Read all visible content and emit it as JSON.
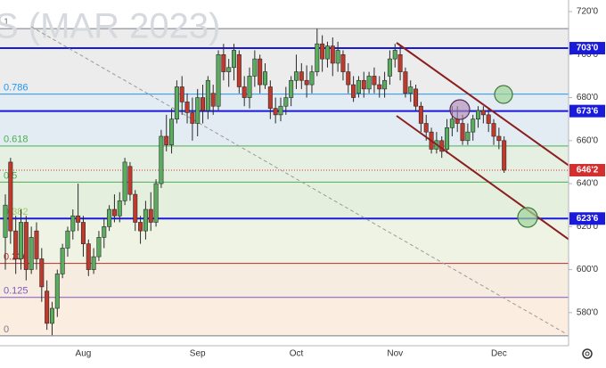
{
  "chart_data": {
    "type": "candlestick",
    "watermark": "S (MAR 2023)",
    "categories": [
      null,
      null,
      null,
      null,
      null,
      null,
      null,
      null,
      null,
      null,
      null,
      null,
      null,
      null,
      null,
      "Aug",
      null,
      null,
      null,
      null,
      null,
      null,
      null,
      null,
      null,
      null,
      null,
      null,
      null,
      null,
      null,
      null,
      null,
      null,
      null,
      null,
      null,
      "Sep",
      null,
      null,
      null,
      null,
      null,
      null,
      null,
      null,
      null,
      null,
      null,
      null,
      null,
      null,
      null,
      null,
      null,
      null,
      "Oct",
      null,
      null,
      null,
      null,
      null,
      null,
      null,
      null,
      null,
      null,
      null,
      null,
      null,
      null,
      null,
      null,
      null,
      null,
      "Nov",
      null,
      null,
      null,
      null,
      null,
      null,
      null,
      null,
      null,
      null,
      null,
      null,
      null,
      null,
      null,
      null,
      null,
      null,
      null,
      "Dec",
      null
    ],
    "series": [
      {
        "up_color": "#5aad5e",
        "down_color": "#c0392b",
        "open": [
          615,
          650,
          618,
          605,
          622,
          600,
          618,
          605,
          590,
          575,
          582,
          598,
          610,
          618,
          625,
          622,
          612,
          600,
          606,
          615,
          620,
          628,
          625,
          632,
          648,
          635,
          622,
          618,
          628,
          622,
          640,
          662,
          658,
          670,
          685,
          678,
          673,
          668,
          680,
          674,
          682,
          676,
          700,
          692,
          694,
          700,
          685,
          680,
          690,
          698,
          686,
          685,
          675,
          672,
          676,
          680,
          688,
          692,
          688,
          686,
          692,
          705,
          698,
          704,
          696,
          700,
          692,
          686,
          682,
          688,
          684,
          690,
          686,
          684,
          690,
          698,
          700,
          692,
          682,
          684,
          676,
          668,
          664,
          656,
          660,
          656,
          666,
          670,
          668,
          660,
          664,
          670,
          674,
          672,
          668,
          662,
          660
        ],
        "high": [
          635,
          652,
          625,
          628,
          625,
          620,
          622,
          610,
          595,
          585,
          600,
          612,
          620,
          628,
          640,
          625,
          614,
          610,
          618,
          624,
          630,
          635,
          636,
          652,
          650,
          637,
          625,
          632,
          636,
          642,
          665,
          672,
          675,
          688,
          690,
          682,
          680,
          684,
          686,
          690,
          686,
          702,
          705,
          698,
          705,
          702,
          690,
          694,
          702,
          700,
          696,
          688,
          680,
          680,
          685,
          690,
          700,
          696,
          695,
          695,
          712,
          709,
          706,
          708,
          706,
          702,
          696,
          690,
          690,
          692,
          692,
          694,
          690,
          692,
          702,
          705,
          704,
          694,
          688,
          686,
          678,
          672,
          666,
          664,
          662,
          670,
          676,
          676,
          672,
          668,
          672,
          676,
          676,
          675,
          670,
          666,
          662
        ],
        "low": [
          600,
          612,
          598,
          600,
          595,
          598,
          600,
          585,
          572,
          569.5,
          578,
          596,
          606,
          614,
          618,
          606,
          597,
          598,
          604,
          610,
          618,
          622,
          622,
          630,
          632,
          618,
          612,
          614,
          618,
          620,
          638,
          655,
          654,
          668,
          672,
          668,
          660,
          662,
          668,
          670,
          672,
          674,
          688,
          685,
          688,
          682,
          676,
          675,
          685,
          682,
          684,
          670,
          668,
          669,
          672,
          676,
          684,
          684,
          680,
          682,
          690,
          692,
          694,
          690,
          692,
          688,
          682,
          678,
          680,
          680,
          682,
          682,
          680,
          680,
          686,
          694,
          688,
          680,
          678,
          674,
          664,
          660,
          654,
          654,
          652,
          654,
          662,
          664,
          658,
          658,
          660,
          666,
          668,
          664,
          658,
          656,
          645
        ],
        "close": [
          630,
          618,
          605,
          622,
          600,
          615,
          605,
          592,
          575,
          582,
          598,
          610,
          618,
          625,
          622,
          612,
          600,
          606,
          615,
          620,
          628,
          625,
          632,
          650,
          635,
          622,
          618,
          628,
          622,
          640,
          662,
          658,
          670,
          685,
          678,
          673,
          668,
          680,
          674,
          688,
          676,
          700,
          692,
          694,
          702,
          685,
          680,
          690,
          698,
          686,
          692,
          675,
          672,
          676,
          680,
          688,
          692,
          688,
          686,
          692,
          705,
          698,
          704,
          696,
          702,
          692,
          686,
          680,
          688,
          684,
          690,
          686,
          684,
          688,
          698,
          702,
          692,
          682,
          685,
          676,
          668,
          664,
          656,
          660,
          655,
          666,
          670,
          668,
          660,
          664,
          670,
          674,
          672,
          668,
          662,
          660,
          646.25
        ]
      }
    ],
    "ylim": [
      564.6,
      725.4
    ],
    "yticks": [
      {
        "value": 720,
        "label": "720'0"
      },
      {
        "value": 700,
        "label": "700'0"
      },
      {
        "value": 680,
        "label": "680'0"
      },
      {
        "value": 660,
        "label": "660'0"
      },
      {
        "value": 640,
        "label": "640'0"
      },
      {
        "value": 620,
        "label": "620'0"
      },
      {
        "value": 600,
        "label": "600'0"
      },
      {
        "value": 580,
        "label": "580'0"
      }
    ],
    "fib_levels": [
      {
        "ratio": 1,
        "price": 712.1,
        "color": "#787b86",
        "fill": "#ececec"
      },
      {
        "ratio": 0.786,
        "price": 681.6,
        "color": "#2196f3",
        "fill": "#e3ecf2"
      },
      {
        "ratio": 0.618,
        "price": 657.5,
        "color": "#4caf50",
        "fill": "#e6f0e2"
      },
      {
        "ratio": 0.5,
        "price": 640.7,
        "color": "#4caf50",
        "fill": "#e4f0dd"
      },
      {
        "ratio": 0.382,
        "price": 623.8,
        "color": "#9ccc65",
        "fill": "#eef3e4"
      },
      {
        "ratio": 0.236,
        "price": 602.9,
        "color": "#c62828",
        "fill": "#f6ecdf"
      },
      {
        "ratio": 0.125,
        "price": 587.1,
        "color": "#7e57c2",
        "fill": "#fbeee0"
      },
      {
        "ratio": 0,
        "price": 569.2,
        "color": "#787b86"
      }
    ],
    "price_lines": [
      {
        "price": 703,
        "label": "703'0",
        "color": "#1a1adb"
      },
      {
        "price": 673.75,
        "label": "673'6",
        "color": "#1a1adb"
      },
      {
        "price": 623.75,
        "label": "623'6",
        "color": "#1a1adb"
      }
    ],
    "last_price": {
      "price": 646.25,
      "label": "646'2",
      "color": "#d32f2f"
    }
  }
}
